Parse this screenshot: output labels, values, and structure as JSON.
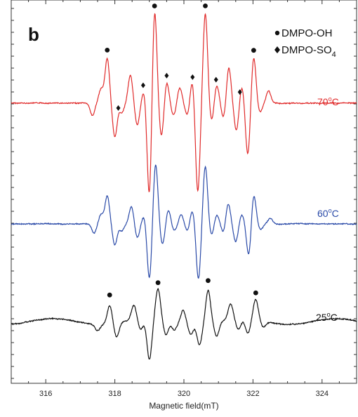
{
  "chart_data": {
    "type": "line",
    "panel_label": "b",
    "xlabel": "Magnetic field(mT)",
    "xlim": [
      315,
      325
    ],
    "xticks": [
      316,
      318,
      320,
      322,
      324
    ],
    "legend": {
      "placement": "top-right",
      "entries": [
        {
          "marker": "circle",
          "label": "DMPO-OH",
          "sub": ""
        },
        {
          "marker": "diamond",
          "label": "DMPO-SO",
          "sub": "4"
        }
      ]
    },
    "series": [
      {
        "name": "70°C",
        "label_main": "70",
        "label_sup": "o",
        "label_unit": "C",
        "color": "#e02a2a",
        "baseline": 0,
        "peaks": [
          [
            317.35,
            -0.2
          ],
          [
            317.6,
            0.22
          ],
          [
            317.78,
            0.72
          ],
          [
            318.0,
            -0.55
          ],
          [
            318.2,
            -0.15
          ],
          [
            318.45,
            0.45
          ],
          [
            318.65,
            -0.35
          ],
          [
            318.85,
            0.22
          ],
          [
            319.0,
            -1.55
          ],
          [
            319.15,
            1.55
          ],
          [
            319.35,
            -0.55
          ],
          [
            319.5,
            0.35
          ],
          [
            319.7,
            -0.2
          ],
          [
            319.88,
            0.25
          ],
          [
            320.1,
            -0.2
          ],
          [
            320.25,
            0.4
          ],
          [
            320.4,
            -1.45
          ],
          [
            320.62,
            1.45
          ],
          [
            320.8,
            -0.3
          ],
          [
            320.95,
            0.3
          ],
          [
            321.15,
            -0.25
          ],
          [
            321.3,
            0.58
          ],
          [
            321.52,
            -0.45
          ],
          [
            321.68,
            0.28
          ],
          [
            321.85,
            -0.85
          ],
          [
            322.02,
            0.75
          ],
          [
            322.2,
            -0.15
          ],
          [
            322.45,
            0.2
          ]
        ],
        "circle_markers": [
          317.78,
          319.15,
          320.62,
          322.02
        ],
        "diamond_markers": [
          318.1,
          318.82,
          319.5,
          320.25,
          320.93,
          321.62
        ]
      },
      {
        "name": "60°C",
        "label_main": "60",
        "label_sup": "o",
        "label_unit": "C",
        "color": "#2a4aa8",
        "baseline": 0,
        "peaks": [
          [
            317.4,
            -0.2
          ],
          [
            317.6,
            0.2
          ],
          [
            317.78,
            0.6
          ],
          [
            318.0,
            -0.45
          ],
          [
            318.2,
            -0.15
          ],
          [
            318.48,
            0.38
          ],
          [
            318.65,
            -0.3
          ],
          [
            318.85,
            0.18
          ],
          [
            319.0,
            -1.2
          ],
          [
            319.18,
            1.3
          ],
          [
            319.38,
            -0.45
          ],
          [
            319.55,
            0.3
          ],
          [
            319.72,
            -0.15
          ],
          [
            319.92,
            0.2
          ],
          [
            320.1,
            -0.15
          ],
          [
            320.25,
            0.3
          ],
          [
            320.42,
            -1.2
          ],
          [
            320.62,
            1.25
          ],
          [
            320.8,
            -0.25
          ],
          [
            320.95,
            0.2
          ],
          [
            321.15,
            -0.2
          ],
          [
            321.28,
            0.45
          ],
          [
            321.5,
            -0.38
          ],
          [
            321.68,
            0.2
          ],
          [
            321.88,
            -0.7
          ],
          [
            322.02,
            0.65
          ],
          [
            322.22,
            -0.12
          ],
          [
            322.5,
            0.12
          ]
        ],
        "circle_markers": [],
        "diamond_markers": []
      },
      {
        "name": "25°C",
        "label_main": "25",
        "label_sup": "o",
        "label_unit": "C",
        "color": "#111111",
        "baseline": 0,
        "peaks": [
          [
            317.5,
            -0.15
          ],
          [
            317.85,
            0.45
          ],
          [
            318.05,
            -0.35
          ],
          [
            318.55,
            0.35
          ],
          [
            318.75,
            -0.25
          ],
          [
            319.0,
            -1.0
          ],
          [
            319.25,
            0.75
          ],
          [
            319.48,
            -0.35
          ],
          [
            319.72,
            -0.2
          ],
          [
            319.98,
            0.32
          ],
          [
            320.2,
            -0.25
          ],
          [
            320.45,
            -0.5
          ],
          [
            320.7,
            0.8
          ],
          [
            320.95,
            -0.35
          ],
          [
            321.35,
            0.38
          ],
          [
            321.58,
            -0.25
          ],
          [
            321.85,
            -0.35
          ],
          [
            322.08,
            0.5
          ],
          [
            322.3,
            -0.15
          ]
        ],
        "circle_markers": [
          317.85,
          319.25,
          320.7,
          322.08
        ],
        "diamond_markers": []
      }
    ]
  }
}
